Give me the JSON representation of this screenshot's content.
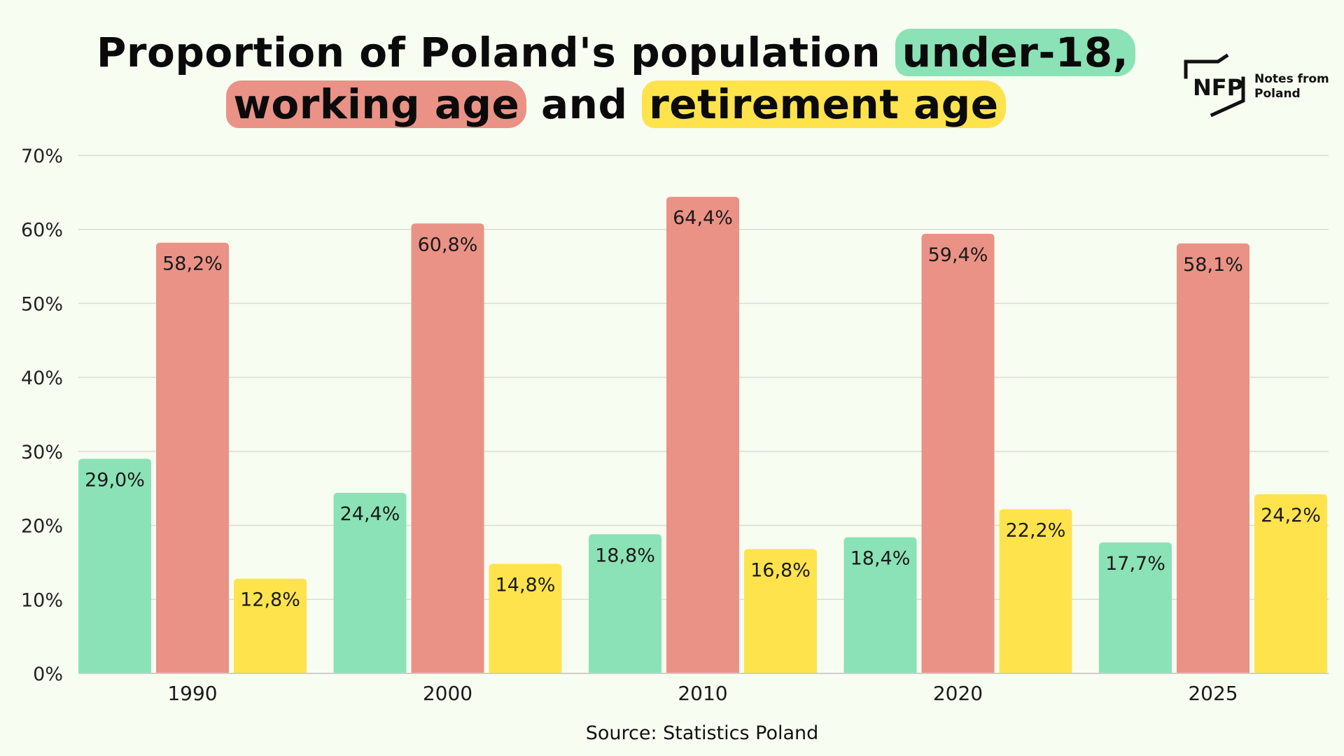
{
  "title": {
    "part1": "Proportion of Poland's population ",
    "under18": "under-18,",
    "working": "working age",
    "and": " and ",
    "retirement": "retirement age"
  },
  "logo": {
    "mark": "NFP",
    "line1": "Notes from",
    "line2": "Poland"
  },
  "source": "Source: Statistics Poland",
  "colors": {
    "under18": "#8be2b6",
    "working": "#ea9286",
    "retirement": "#fee34d",
    "grid": "#dcdcd6",
    "background": "#f7fdf1"
  },
  "chart_data": {
    "type": "bar",
    "categories": [
      "1990",
      "2000",
      "2010",
      "2020",
      "2025"
    ],
    "series": [
      {
        "values": [
          29.0,
          24.4,
          18.8,
          18.4,
          17.7
        ],
        "labels": [
          "29,0%",
          "24,4%",
          "18,8%",
          "18,4%",
          "17,7%"
        ],
        "color": "#8be2b6"
      },
      {
        "values": [
          58.2,
          60.8,
          64.4,
          59.4,
          58.1
        ],
        "labels": [
          "58,2%",
          "60,8%",
          "64,4%",
          "59,4%",
          "58,1%"
        ],
        "color": "#ea9286"
      },
      {
        "values": [
          12.8,
          14.8,
          16.8,
          22.2,
          24.2
        ],
        "labels": [
          "12,8%",
          "14,8%",
          "16,8%",
          "22,2%",
          "24,2%"
        ],
        "color": "#fee34d"
      }
    ],
    "yticks": [
      0,
      10,
      20,
      30,
      40,
      50,
      60,
      70
    ],
    "ytick_labels": [
      "0%",
      "10%",
      "20%",
      "30%",
      "40%",
      "50%",
      "60%",
      "70%"
    ],
    "ylim": [
      0,
      70
    ],
    "xlabel": "",
    "ylabel": "",
    "grid": true,
    "legend": false
  }
}
